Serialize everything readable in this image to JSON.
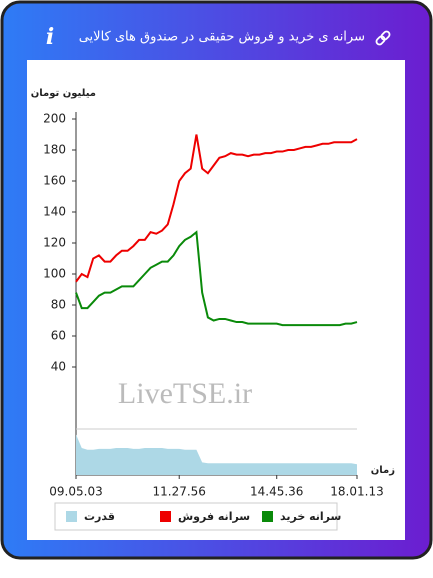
{
  "chart_data": {
    "type": "line",
    "title": "سرانه ی خرید و فروش حقیقی در صندوق های کالایی",
    "info_icon": "i",
    "y_label": "میلیون تومان",
    "x_label": "زمان",
    "watermark": "LiveTSE.ir",
    "xlim": [
      0,
      49
    ],
    "xticks": [
      {
        "value": 0,
        "label": "09.05.03"
      },
      {
        "value": 18,
        "label": "11.27.56"
      },
      {
        "value": 35,
        "label": "14.45.36"
      },
      {
        "value": 49,
        "label": "18.01.13"
      }
    ],
    "ylim": [
      0,
      200
    ],
    "yticks": [
      40,
      60,
      80,
      100,
      120,
      140,
      160,
      180,
      200
    ],
    "y2lim": [
      0,
      50
    ],
    "series": [
      {
        "name": "سرانه خرید",
        "color": "#0a8a0a",
        "values": [
          88,
          78,
          78,
          82,
          86,
          88,
          88,
          90,
          92,
          92,
          92,
          96,
          100,
          104,
          106,
          108,
          108,
          112,
          118,
          122,
          124,
          127,
          88,
          72,
          70,
          71,
          71,
          70,
          69,
          69,
          68,
          68,
          68,
          68,
          68,
          68,
          67,
          67,
          67,
          67,
          67,
          67,
          67,
          67,
          67,
          67,
          67,
          68,
          68,
          69
        ]
      },
      {
        "name": "سرانه فروش",
        "color": "#ee0000",
        "values": [
          95,
          100,
          98,
          110,
          112,
          108,
          108,
          112,
          115,
          115,
          118,
          122,
          122,
          127,
          126,
          128,
          132,
          145,
          160,
          165,
          168,
          190,
          168,
          165,
          170,
          175,
          176,
          178,
          177,
          177,
          176,
          177,
          177,
          178,
          178,
          179,
          179,
          180,
          180,
          181,
          182,
          182,
          183,
          184,
          184,
          185,
          185,
          185,
          185,
          187
        ]
      },
      {
        "name": "قدرت",
        "color": "#add8e6",
        "axis": "y2",
        "values": [
          45,
          30,
          28,
          28,
          29,
          29,
          29,
          30,
          30,
          30,
          29,
          29,
          30,
          30,
          30,
          30,
          29,
          29,
          29,
          28,
          28,
          28,
          14,
          13,
          13,
          13,
          13,
          13,
          13,
          13,
          13,
          13,
          13,
          13,
          13,
          13,
          13,
          13,
          13,
          13,
          13,
          13,
          13,
          13,
          13,
          13,
          13,
          13,
          13,
          12
        ]
      }
    ]
  }
}
